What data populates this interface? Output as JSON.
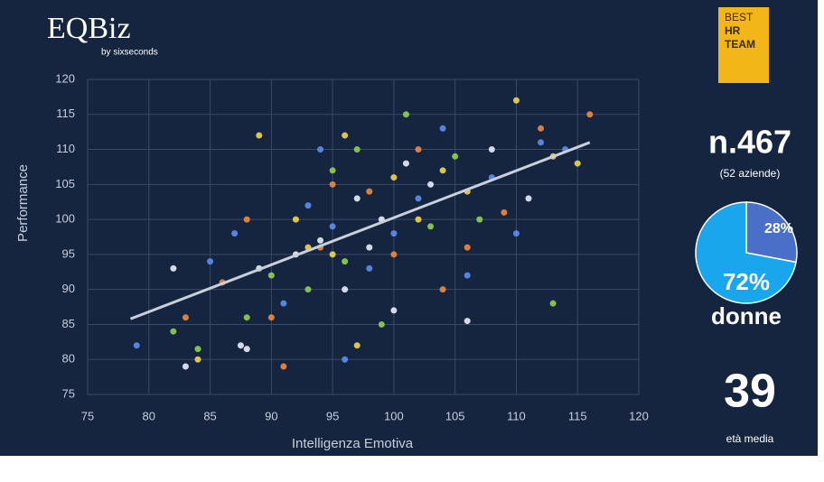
{
  "logo": {
    "name": "EQBiz",
    "byline": "by sixseconds"
  },
  "badge": {
    "lines": [
      "BEST",
      "HR",
      "TEAM"
    ]
  },
  "chart_data": [
    {
      "type": "scatter",
      "xlabel": "Intelligenza Emotiva",
      "ylabel": "Performance",
      "xlim": [
        75,
        120
      ],
      "ylim": [
        75,
        120
      ],
      "xticks": [
        75,
        80,
        85,
        90,
        95,
        100,
        105,
        110,
        115,
        120
      ],
      "yticks": [
        75,
        80,
        85,
        90,
        95,
        100,
        105,
        110,
        115,
        120
      ],
      "grid": true,
      "series": [
        {
          "color": "#e8eef7",
          "x": [
            82,
            83,
            87.5,
            88,
            89,
            92,
            94,
            96,
            98,
            100,
            101,
            103,
            106,
            108,
            111,
            97,
            99
          ],
          "y": [
            93,
            79,
            82,
            81.5,
            93,
            95,
            97,
            90,
            96,
            87,
            108,
            105,
            85.5,
            110,
            103,
            103,
            100
          ]
        },
        {
          "color": "#f2d64b",
          "x": [
            84,
            89,
            93,
            95,
            96,
            97,
            100,
            102,
            104,
            106,
            110,
            113,
            92,
            115
          ],
          "y": [
            80,
            112,
            96,
            95,
            112,
            82,
            106,
            100,
            107,
            104,
            117,
            109,
            100,
            108
          ]
        },
        {
          "color": "#f28a3c",
          "x": [
            83,
            86,
            88,
            91,
            94,
            95,
            98,
            100,
            102,
            104,
            106,
            109,
            112,
            116,
            90
          ],
          "y": [
            86,
            91,
            100,
            79,
            96,
            105,
            104,
            95,
            110,
            90,
            96,
            101,
            113,
            115,
            86
          ]
        },
        {
          "color": "#8fd14f",
          "x": [
            82,
            84,
            88,
            90,
            93,
            95,
            97,
            99,
            101,
            103,
            105,
            107,
            113,
            96
          ],
          "y": [
            84,
            81.5,
            86,
            92,
            90,
            107,
            110,
            85,
            115,
            99,
            109,
            100,
            88,
            94
          ]
        },
        {
          "color": "#5b8ff0",
          "x": [
            79,
            85,
            87,
            91,
            93,
            94,
            96,
            98,
            100,
            102,
            104,
            106,
            108,
            110,
            112,
            114,
            95
          ],
          "y": [
            82,
            94,
            98,
            88,
            102,
            110,
            80,
            93,
            98,
            103,
            113,
            92,
            106,
            98,
            111,
            110,
            99
          ]
        }
      ],
      "trendline": {
        "color": "#c9d0dc",
        "x": [
          78.5,
          116
        ],
        "y": [
          85.8,
          111
        ]
      }
    },
    {
      "type": "pie",
      "values": [
        28,
        72
      ],
      "value_labels": [
        "28%",
        "72%"
      ],
      "colors": [
        "#4a6fc8",
        "#19a6ec"
      ],
      "caption": "donne"
    }
  ],
  "stats": {
    "sample": "n.467",
    "companies": "(52 aziende)",
    "age": "39",
    "age_label": "età media"
  }
}
